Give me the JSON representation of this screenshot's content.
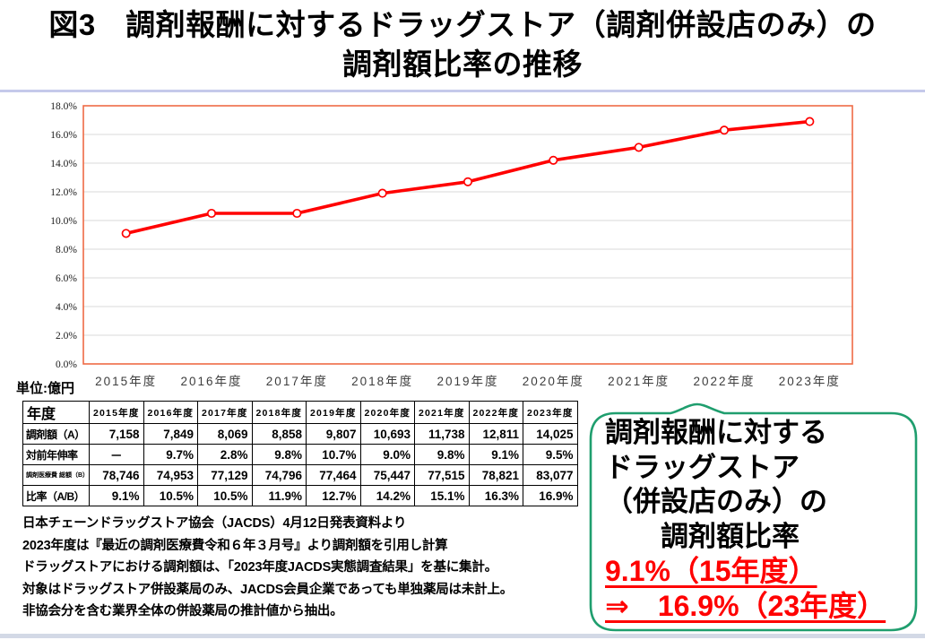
{
  "title": {
    "line1": "図3　調剤報酬に対するドラッグストア（調剤併設店のみ）の",
    "line2": "調剤額比率の推移"
  },
  "unit_label": "単位:億円",
  "chart_data": {
    "type": "line",
    "title": "",
    "categories": [
      "2015年度",
      "2016年度",
      "2017年度",
      "2018年度",
      "2019年度",
      "2020年度",
      "2021年度",
      "2022年度",
      "2023年度"
    ],
    "series": [
      {
        "name": "比率（A/B）",
        "values": [
          9.1,
          10.5,
          10.5,
          11.9,
          12.7,
          14.2,
          15.1,
          16.3,
          16.9
        ]
      }
    ],
    "xlabel": "",
    "ylabel": "",
    "ylim": [
      0,
      18
    ],
    "ytick_step": 2,
    "ytick_format": "percent-1dp",
    "grid": true,
    "legend": "none",
    "line_color": "#ff0000",
    "marker": "open-circle",
    "marker_fill": "#ffffff",
    "grid_color": "#d9d9d9",
    "plot_border_color": "#ee6b45"
  },
  "table": {
    "corner_label": "年度",
    "years": [
      "2015年度",
      "2016年度",
      "2017年度",
      "2018年度",
      "2019年度",
      "2020年度",
      "2021年度",
      "2022年度",
      "2023年度"
    ],
    "rows": [
      {
        "label": "調剤額（A）",
        "size": "normal",
        "values": [
          "7,158",
          "7,849",
          "8,069",
          "8,858",
          "9,807",
          "10,693",
          "11,738",
          "12,811",
          "14,025"
        ]
      },
      {
        "label": "対前年伸率",
        "size": "normal",
        "values": [
          "－",
          "9.7%",
          "2.8%",
          "9.8%",
          "10.7%",
          "9.0%",
          "9.8%",
          "9.1%",
          "9.5%"
        ]
      },
      {
        "label": "調剤医療費 総額（B）",
        "size": "small",
        "values": [
          "78,746",
          "74,953",
          "77,129",
          "74,796",
          "77,464",
          "75,447",
          "77,515",
          "78,821",
          "83,077"
        ]
      },
      {
        "label": "比率（A/B）",
        "size": "normal",
        "values": [
          "9.1%",
          "10.5%",
          "10.5%",
          "11.9%",
          "12.7%",
          "14.2%",
          "15.1%",
          "16.3%",
          "16.9%"
        ]
      }
    ]
  },
  "footnotes": [
    "日本チェーンドラッグストア協会（JACDS）4月12日発表資料より",
    "2023年度は『最近の調剤医療費令和６年３月号』より調剤額を引用し計算",
    "ドラッグストアにおける調剤額は、「2023年度JACDS実態調査結果」を基に集計。",
    "対象はドラッグストア併設薬局のみ、JACDS会員企業であっても単独薬局は未計上。",
    "非協会分を含む業界全体の併設薬局の推計値から抽出。"
  ],
  "callout": {
    "border_color": "#1f9e6e",
    "lines": [
      {
        "text": "調剤報酬に対する",
        "style": "black"
      },
      {
        "text": "ドラッグストア",
        "style": "black"
      },
      {
        "text": "（併設店のみ）の",
        "style": "black"
      },
      {
        "text": "調剤額比率",
        "style": "black-indent"
      },
      {
        "text": "9.1%（15年度）",
        "style": "red"
      },
      {
        "text": "⇒　16.9%（23年度）",
        "style": "red"
      }
    ]
  },
  "colors": {
    "title_rule": "#c5c9ea",
    "bottom_rule": "#d3d9e6",
    "chart_line": "#ff0000",
    "plot_border": "#ee6b45",
    "callout_border": "#1f9e6e",
    "red_text": "#ff0000"
  }
}
